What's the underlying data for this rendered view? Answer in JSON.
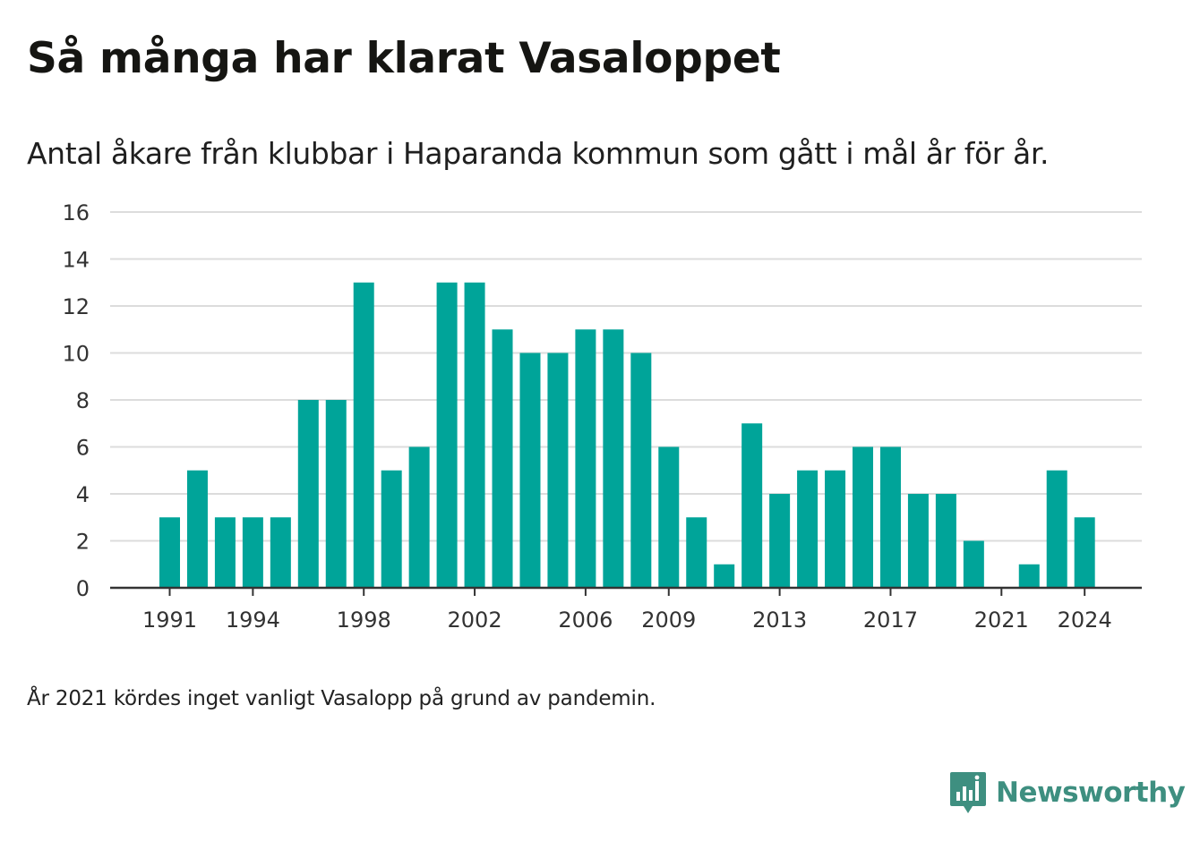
{
  "title": "Så många har klarat Vasaloppet",
  "subtitle": "Antal åkare från klubbar i Haparanda kommun som gått i mål år för år.",
  "note": "År 2021 kördes inget vanligt Vasalopp på grund av pandemin.",
  "brand": {
    "name": "Newsworthy",
    "icon": "newsworthy-logo-icon",
    "color": "#3e8f80"
  },
  "chart_data": {
    "type": "bar",
    "title": "Så många har klarat Vasaloppet",
    "subtitle": "Antal åkare från klubbar i Haparanda kommun som gått i mål år för år.",
    "xlabel": "",
    "ylabel": "",
    "categories": [
      1991,
      1992,
      1993,
      1994,
      1995,
      1996,
      1997,
      1998,
      1999,
      2000,
      2001,
      2002,
      2003,
      2004,
      2005,
      2006,
      2007,
      2008,
      2009,
      2010,
      2011,
      2012,
      2013,
      2014,
      2015,
      2016,
      2017,
      2018,
      2019,
      2020,
      2021,
      2022,
      2023,
      2024
    ],
    "values": [
      3,
      5,
      3,
      3,
      3,
      8,
      8,
      13,
      5,
      6,
      13,
      13,
      11,
      10,
      10,
      11,
      11,
      10,
      6,
      3,
      1,
      7,
      4,
      5,
      5,
      6,
      6,
      4,
      4,
      2,
      0,
      1,
      5,
      3
    ],
    "x_tick_labels": [
      "1991",
      "1994",
      "1998",
      "2002",
      "2006",
      "2009",
      "2013",
      "2017",
      "2021",
      "2024"
    ],
    "y_ticks": [
      "0",
      "2",
      "4",
      "6",
      "8",
      "10",
      "12",
      "14",
      "16"
    ],
    "ylim": [
      0,
      16
    ],
    "grid": true,
    "legend": "none",
    "bar_color": "#00a499",
    "grid_color": "#dcdcdc",
    "axis_color": "#333333"
  }
}
